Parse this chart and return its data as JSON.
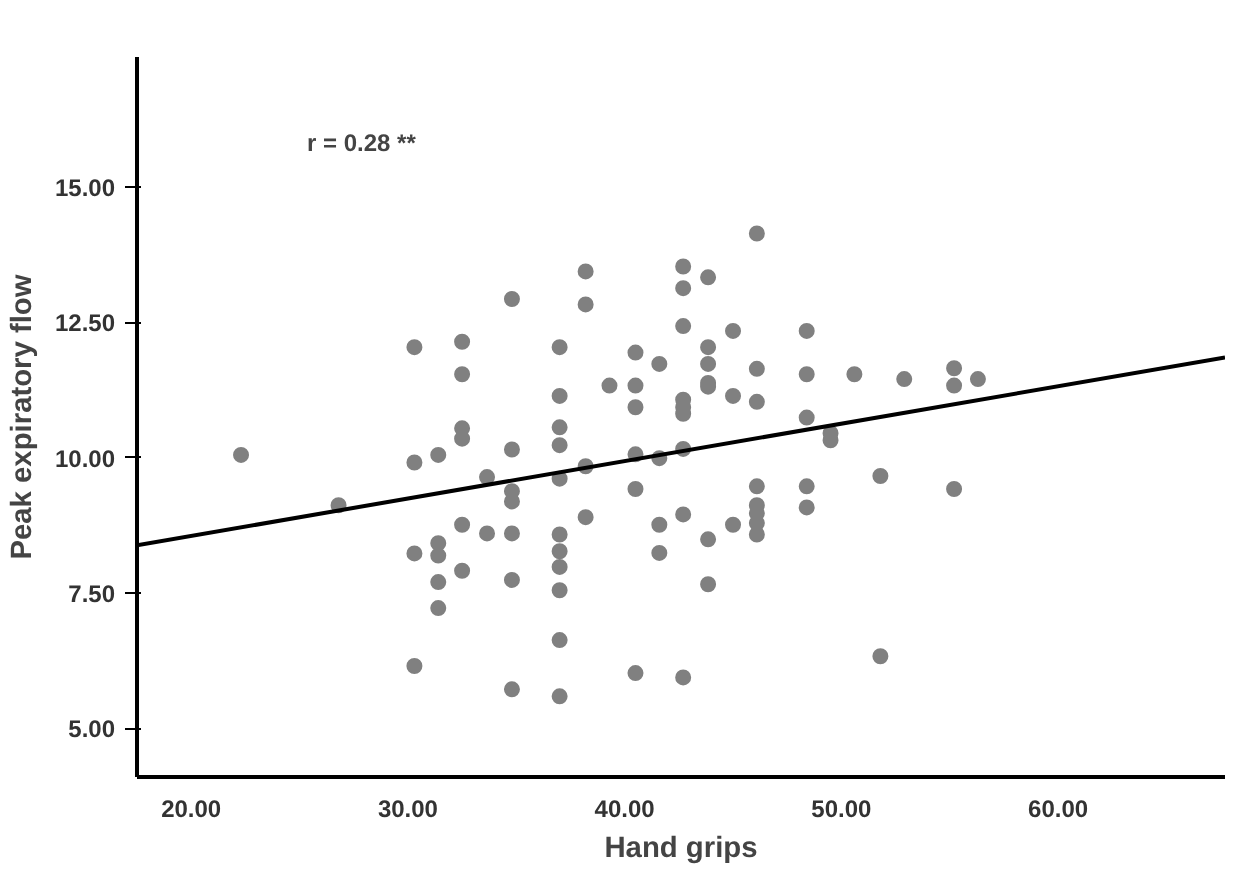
{
  "chart_data": {
    "type": "scatter",
    "xlabel": "Hand grips",
    "ylabel": "Peak expiratory flow",
    "annotations": [
      "r = 0.28 **"
    ],
    "xlim": [
      17.5,
      67.7
    ],
    "ylim": [
      4.1,
      17.4
    ],
    "xticks": [
      {
        "value": 20,
        "label": "20.00"
      },
      {
        "value": 30,
        "label": "30.00"
      },
      {
        "value": 40,
        "label": "40.00"
      },
      {
        "value": 50,
        "label": "50.00"
      },
      {
        "value": 60,
        "label": "60.00"
      }
    ],
    "yticks": [
      {
        "value": 5,
        "label": "5.00"
      },
      {
        "value": 7.5,
        "label": "7.50"
      },
      {
        "value": 10,
        "label": "10.00"
      },
      {
        "value": 12.5,
        "label": "12.50"
      },
      {
        "value": 15,
        "label": "15.00"
      }
    ],
    "grid": false,
    "marker": "circle",
    "series": [
      {
        "color": "#808080",
        "x": [
          22.3,
          26.8,
          30.3,
          30.3,
          30.3,
          30.3,
          31.4,
          31.4,
          31.4,
          31.4,
          31.4,
          32.5,
          32.5,
          32.5,
          32.5,
          32.5,
          32.5,
          33.65,
          33.65,
          34.8,
          34.8,
          34.8,
          34.8,
          34.8,
          34.8,
          34.8,
          37.0,
          37.0,
          37.0,
          37.0,
          37.0,
          37.0,
          37.0,
          37.0,
          37.0,
          37.0,
          37.0,
          38.2,
          38.2,
          38.2,
          38.2,
          39.3,
          40.5,
          40.5,
          40.5,
          40.5,
          40.5,
          40.5,
          41.6,
          41.6,
          41.6,
          41.6,
          42.7,
          42.7,
          42.7,
          42.7,
          42.7,
          42.7,
          42.7,
          42.7,
          42.7,
          43.85,
          43.85,
          43.85,
          43.85,
          43.85,
          43.85,
          43.85,
          45.0,
          45.0,
          45.0,
          46.1,
          46.1,
          46.1,
          46.1,
          46.1,
          46.1,
          46.1,
          46.1,
          48.4,
          48.4,
          48.4,
          48.4,
          48.4,
          49.5,
          49.5,
          50.6,
          51.8,
          51.8,
          52.9,
          55.2,
          55.2,
          55.2,
          56.3
        ],
        "values": [
          10.05,
          9.12,
          12.04,
          9.91,
          8.23,
          6.15,
          10.05,
          8.42,
          8.19,
          7.7,
          7.22,
          12.14,
          11.54,
          10.54,
          10.35,
          8.76,
          7.91,
          9.64,
          8.6,
          12.93,
          10.15,
          9.38,
          9.19,
          8.6,
          7.74,
          5.72,
          12.04,
          11.14,
          10.56,
          10.23,
          9.61,
          8.58,
          8.27,
          7.98,
          7.55,
          6.63,
          5.59,
          13.44,
          12.83,
          9.84,
          8.9,
          11.33,
          11.94,
          11.33,
          10.93,
          10.06,
          9.42,
          6.02,
          11.73,
          9.99,
          8.76,
          8.24,
          13.53,
          13.13,
          12.43,
          11.07,
          10.93,
          10.81,
          10.16,
          8.95,
          5.94,
          13.33,
          12.04,
          11.73,
          11.38,
          11.31,
          8.49,
          7.66,
          12.34,
          11.14,
          8.76,
          14.14,
          11.64,
          11.03,
          9.47,
          9.12,
          8.97,
          8.79,
          8.58,
          12.34,
          11.54,
          10.74,
          9.47,
          9.08,
          10.45,
          10.32,
          11.54,
          9.66,
          6.33,
          11.45,
          11.65,
          11.33,
          9.42,
          11.45
        ]
      },
      {
        "type": "line",
        "color": "#000000",
        "x": [
          17.5,
          67.7
        ],
        "values": [
          8.38,
          11.85
        ],
        "marker": "none",
        "line_style": "solid"
      }
    ]
  }
}
